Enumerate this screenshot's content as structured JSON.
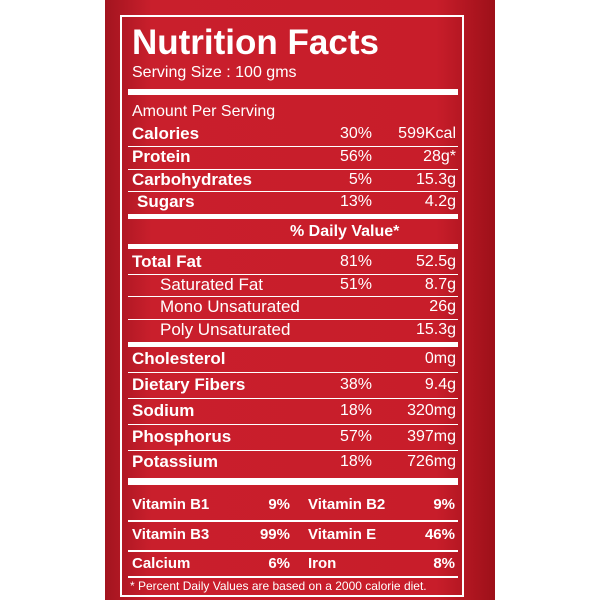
{
  "title": "Nutrition Facts",
  "serving_size": "Serving Size : 100 gms",
  "amount_per_serving": "Amount Per Serving",
  "rows": [
    {
      "name": "Calories",
      "percent": "30%",
      "amount": "599Kcal"
    },
    {
      "name": "Protein",
      "percent": "56%",
      "amount": "28g*"
    },
    {
      "name": "Carbohydrates",
      "percent": "5%",
      "amount": "15.3g"
    },
    {
      "name": "Sugars",
      "percent": "13%",
      "amount": "4.2g"
    }
  ],
  "daily_value_header": "% Daily Value*",
  "fat_rows": [
    {
      "name": "Total Fat",
      "percent": "81%",
      "amount": "52.5g"
    },
    {
      "name": "Saturated Fat",
      "percent": "51%",
      "amount": "8.7g"
    },
    {
      "name": "Mono Unsaturated",
      "amount": "26g"
    },
    {
      "name": "Poly Unsaturated",
      "amount": "15.3g"
    }
  ],
  "mineral_rows": [
    {
      "name": "Cholesterol",
      "amount": "0mg"
    },
    {
      "name": "Dietary Fibers",
      "percent": "38%",
      "amount": "9.4g"
    },
    {
      "name": "Sodium",
      "percent": "18%",
      "amount": "320mg"
    },
    {
      "name": "Phosphorus",
      "percent": "57%",
      "amount": "397mg"
    },
    {
      "name": "Potassium",
      "percent": "18%",
      "amount": "726mg"
    }
  ],
  "vitamins": [
    {
      "name": "Vitamin B1",
      "percent": "9%"
    },
    {
      "name": "Vitamin B2",
      "percent": "9%"
    },
    {
      "name": "Vitamin B3",
      "percent": "99%"
    },
    {
      "name": "Vitamin E",
      "percent": "46%"
    },
    {
      "name": "Calcium",
      "percent": "6%"
    },
    {
      "name": "Iron",
      "percent": "8%"
    }
  ],
  "footnote": "* Percent Daily Values are based on a 2000 calorie diet."
}
